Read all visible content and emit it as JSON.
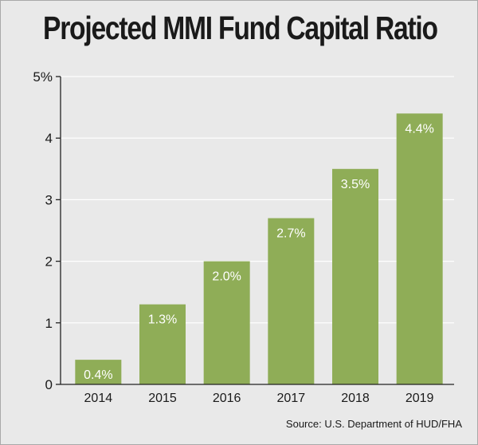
{
  "chart_data": {
    "type": "bar",
    "title": "Projected MMI Fund Capital Ratio",
    "categories": [
      "2014",
      "2015",
      "2016",
      "2017",
      "2018",
      "2019"
    ],
    "values": [
      0.4,
      1.3,
      2.0,
      2.7,
      3.5,
      4.4
    ],
    "data_labels": [
      "0.4%",
      "1.3%",
      "2.0%",
      "2.7%",
      "3.5%",
      "4.4%"
    ],
    "y_ticks": [
      "0",
      "1",
      "2",
      "3",
      "4",
      "5%"
    ],
    "ylim": [
      0,
      5
    ],
    "xlabel": "",
    "ylabel": "",
    "grid": true,
    "bar_color": "#8fad57",
    "source": "Source: U.S. Department of HUD/FHA"
  }
}
